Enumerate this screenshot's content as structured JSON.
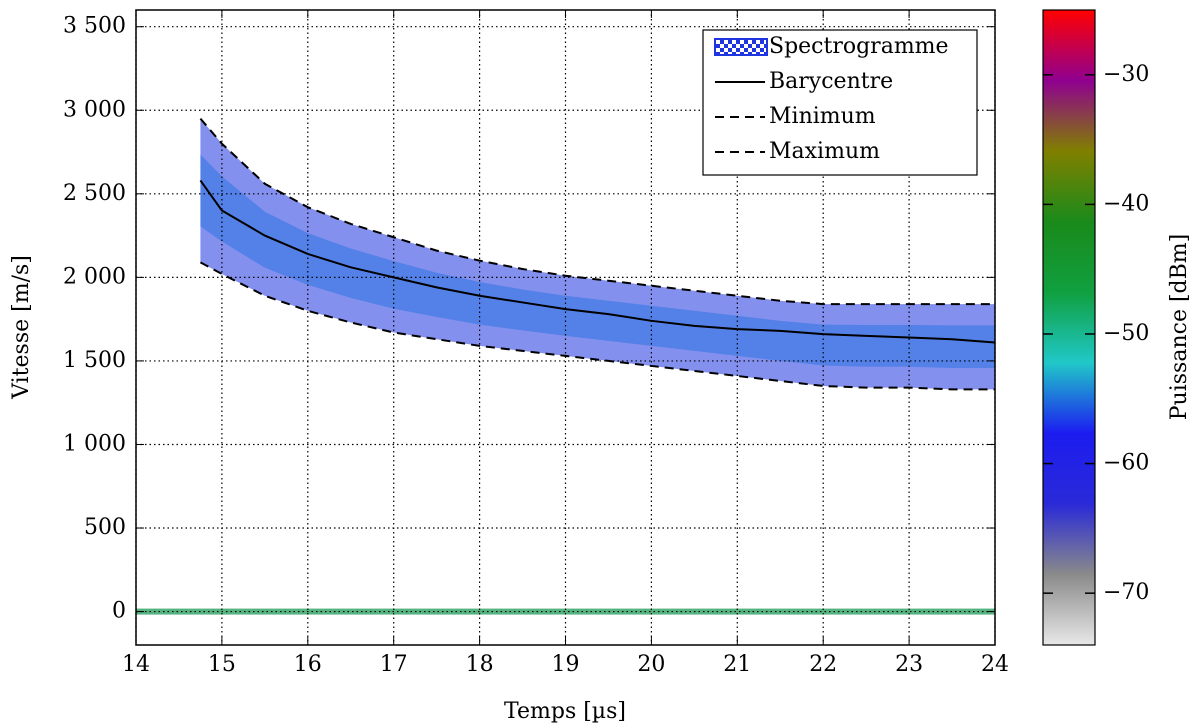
{
  "chart_data": {
    "type": "line",
    "xlabel": "Temps [µs]",
    "ylabel": "Vitesse [m/s]",
    "xlim": [
      14,
      24
    ],
    "xticks": [
      14,
      15,
      16,
      17,
      18,
      19,
      20,
      21,
      22,
      23,
      24
    ],
    "ylim": [
      -200,
      3600
    ],
    "yticks": [
      0,
      500,
      {
        "value": 1000,
        "label": "1 000"
      },
      {
        "value": 1500,
        "label": "1 500"
      },
      {
        "value": 2000,
        "label": "2 000"
      },
      {
        "value": 2500,
        "label": "2 500"
      },
      {
        "value": 3000,
        "label": "3 000"
      },
      {
        "value": 3500,
        "label": "3 500"
      }
    ],
    "grid": true,
    "legend": "upper right",
    "spectrogram": {
      "name": "Spectrogramme",
      "color": "#1f35e0"
    },
    "x": [
      14.75,
      15,
      15.5,
      16,
      16.5,
      17,
      17.5,
      18,
      18.5,
      19,
      19.5,
      20,
      20.5,
      21,
      21.5,
      22,
      22.5,
      23,
      23.5,
      24
    ],
    "series": [
      {
        "name": "Barycentre",
        "color": "#000000",
        "dash": "solid",
        "values": [
          2580,
          2400,
          2250,
          2140,
          2060,
          2000,
          1940,
          1890,
          1850,
          1810,
          1780,
          1740,
          1710,
          1690,
          1680,
          1660,
          1650,
          1640,
          1630,
          1610
        ]
      },
      {
        "name": "Minimum",
        "color": "#000000",
        "dash": "dashed",
        "values": [
          2090,
          2020,
          1890,
          1800,
          1730,
          1670,
          1630,
          1590,
          1560,
          1530,
          1500,
          1470,
          1440,
          1410,
          1380,
          1350,
          1340,
          1340,
          1330,
          1330
        ]
      },
      {
        "name": "Maximum",
        "color": "#000000",
        "dash": "dashed",
        "values": [
          2950,
          2800,
          2560,
          2420,
          2320,
          2240,
          2160,
          2100,
          2050,
          2010,
          1980,
          1950,
          1920,
          1890,
          1860,
          1840,
          1840,
          1840,
          1840,
          1840
        ]
      }
    ],
    "colorbar": {
      "label": "Puissance [dBm]",
      "clim": [
        -74,
        -25
      ],
      "ticks": [
        {
          "value": -70,
          "label": "−70"
        },
        {
          "value": -60,
          "label": "−60"
        },
        {
          "value": -50,
          "label": "−50"
        },
        {
          "value": -40,
          "label": "−40"
        },
        {
          "value": -30,
          "label": "−30"
        }
      ],
      "colors": [
        "#e8e8e8",
        "#8a8a8a",
        "#2a2ad8",
        "#1c1cf0",
        "#20c8c8",
        "#10a040",
        "#1a8a1a",
        "#808000",
        "#900090",
        "#ff0000"
      ]
    }
  }
}
